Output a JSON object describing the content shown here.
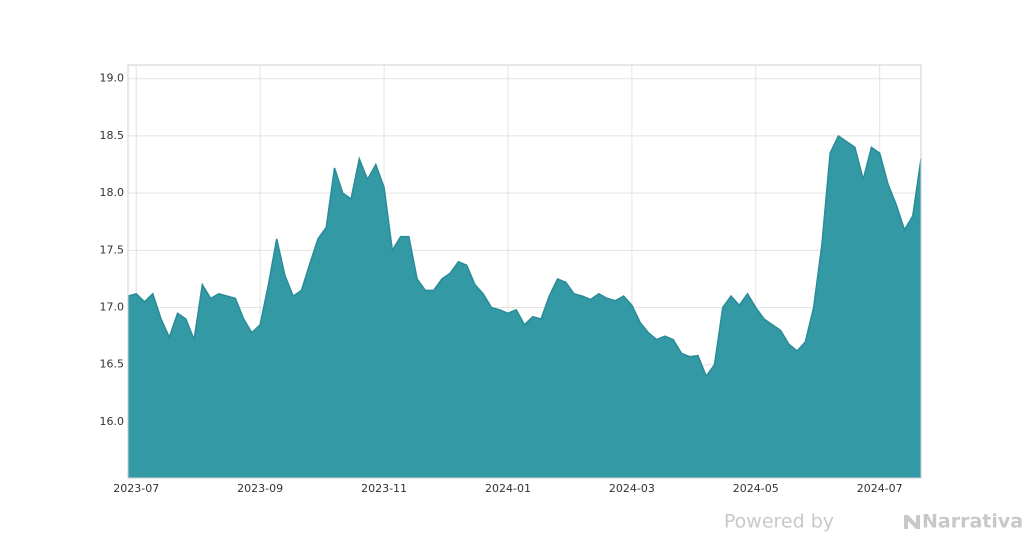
{
  "chart_data": {
    "type": "area",
    "categories": [
      null,
      "2023-07",
      null,
      null,
      null,
      null,
      null,
      null,
      null,
      null,
      null,
      null,
      null,
      null,
      null,
      null,
      "2023-09",
      null,
      null,
      null,
      null,
      null,
      null,
      null,
      null,
      null,
      null,
      null,
      null,
      null,
      null,
      "2023-11",
      null,
      null,
      null,
      null,
      null,
      null,
      null,
      null,
      null,
      null,
      null,
      null,
      null,
      null,
      "2024-01",
      null,
      null,
      null,
      null,
      null,
      null,
      null,
      null,
      null,
      null,
      null,
      null,
      null,
      null,
      "2024-03",
      null,
      null,
      null,
      null,
      null,
      null,
      null,
      null,
      null,
      null,
      null,
      null,
      null,
      null,
      "2024-05",
      null,
      null,
      null,
      null,
      null,
      null,
      null,
      null,
      null,
      null,
      null,
      null,
      null,
      null,
      "2024-07",
      null,
      null,
      null,
      null,
      null
    ],
    "values": [
      17.1,
      17.12,
      17.05,
      17.12,
      16.9,
      16.74,
      16.95,
      16.9,
      16.72,
      17.2,
      17.08,
      17.12,
      17.1,
      17.08,
      16.9,
      16.78,
      16.85,
      17.2,
      17.6,
      17.28,
      17.1,
      17.15,
      17.38,
      17.6,
      17.7,
      18.22,
      18.0,
      17.95,
      18.3,
      18.12,
      18.25,
      18.05,
      17.5,
      17.62,
      17.62,
      17.25,
      17.15,
      17.15,
      17.25,
      17.3,
      17.4,
      17.37,
      17.2,
      17.12,
      17.0,
      16.98,
      16.95,
      16.98,
      16.85,
      16.92,
      16.9,
      17.1,
      17.25,
      17.22,
      17.12,
      17.1,
      17.07,
      17.12,
      17.08,
      17.06,
      17.1,
      17.02,
      16.87,
      16.78,
      16.72,
      16.75,
      16.72,
      16.6,
      16.57,
      16.58,
      16.4,
      16.5,
      17.0,
      17.1,
      17.02,
      17.12,
      17.0,
      16.9,
      16.85,
      16.8,
      16.68,
      16.62,
      16.7,
      17.0,
      17.55,
      18.35,
      18.5,
      18.45,
      18.4,
      18.12,
      18.4,
      18.35,
      18.08,
      17.9,
      17.68,
      17.8,
      18.3
    ],
    "color": "#3399a4",
    "line_color": "#2a8c97",
    "ylim": [
      15.51,
      19.12
    ],
    "yticks": [
      {
        "value": 16.0,
        "label": "16.0"
      },
      {
        "value": 16.5,
        "label": "16.5"
      },
      {
        "value": 17.0,
        "label": "17.0"
      },
      {
        "value": 17.5,
        "label": "17.5"
      },
      {
        "value": 18.0,
        "label": "18.0"
      },
      {
        "value": 18.5,
        "label": "18.5"
      },
      {
        "value": 19.0,
        "label": "19.0"
      }
    ],
    "grid": true
  },
  "watermark": {
    "prefix": "Powered by",
    "brand": "Narrativa"
  }
}
